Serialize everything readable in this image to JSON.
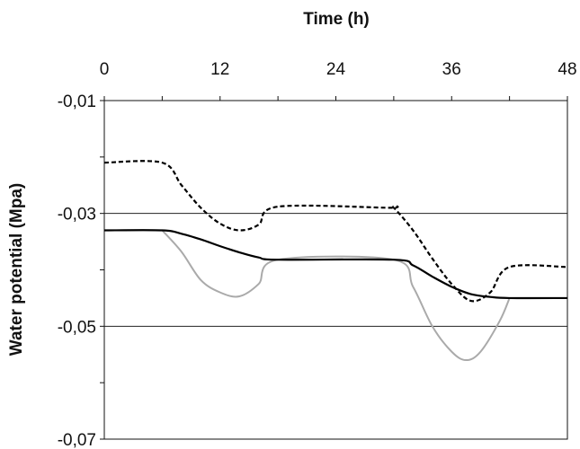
{
  "chart_data": {
    "type": "line",
    "title": "",
    "xlabel": "Time (h)",
    "ylabel": "Water potential (Mpa)",
    "x_axis_position": "top",
    "xlim": [
      0,
      48
    ],
    "ylim": [
      -0.07,
      -0.01
    ],
    "x_ticks": [
      0,
      12,
      24,
      36,
      48
    ],
    "x_tick_labels": [
      "0",
      "12",
      "24",
      "36",
      "48"
    ],
    "y_ticks": [
      -0.01,
      -0.03,
      -0.05,
      -0.07
    ],
    "y_tick_labels": [
      "-0,01",
      "-0,03",
      "-0,05",
      "-0,07"
    ],
    "grid": "horizontal at -0,03 and -0,05",
    "legend": "none",
    "series": [
      {
        "style": "dashed",
        "color": "#000000",
        "points": [
          [
            0,
            -0.021
          ],
          [
            6,
            -0.021
          ],
          [
            8,
            -0.025
          ],
          [
            10,
            -0.029
          ],
          [
            12,
            -0.0318
          ],
          [
            14,
            -0.033
          ],
          [
            16,
            -0.032
          ],
          [
            18,
            -0.0288
          ],
          [
            29.5,
            -0.029
          ],
          [
            30,
            -0.029
          ],
          [
            32,
            -0.033
          ],
          [
            34,
            -0.038
          ],
          [
            36,
            -0.0425
          ],
          [
            38,
            -0.0455
          ],
          [
            40,
            -0.044
          ],
          [
            42,
            -0.0395
          ],
          [
            48,
            -0.0395
          ]
        ]
      },
      {
        "style": "solid",
        "color": "#000000",
        "points": [
          [
            0,
            -0.033
          ],
          [
            6,
            -0.033
          ],
          [
            8,
            -0.0336
          ],
          [
            10,
            -0.0346
          ],
          [
            12,
            -0.0358
          ],
          [
            14,
            -0.0369
          ],
          [
            16,
            -0.0378
          ],
          [
            18,
            -0.0382
          ],
          [
            30,
            -0.0382
          ],
          [
            32,
            -0.0392
          ],
          [
            34,
            -0.0412
          ],
          [
            36,
            -0.043
          ],
          [
            38,
            -0.0443
          ],
          [
            40,
            -0.0448
          ],
          [
            42,
            -0.045
          ],
          [
            48,
            -0.045
          ]
        ]
      },
      {
        "style": "solid",
        "color": "#aaaaaa",
        "points": [
          [
            6,
            -0.033
          ],
          [
            8,
            -0.0368
          ],
          [
            10,
            -0.0418
          ],
          [
            12,
            -0.044
          ],
          [
            14,
            -0.0447
          ],
          [
            16,
            -0.0425
          ],
          [
            18,
            -0.0382
          ],
          [
            30,
            -0.0382
          ],
          [
            32,
            -0.043
          ],
          [
            34,
            -0.05
          ],
          [
            36,
            -0.0545
          ],
          [
            37.5,
            -0.056
          ],
          [
            39,
            -0.0545
          ],
          [
            41,
            -0.049
          ],
          [
            42,
            -0.045
          ]
        ]
      }
    ]
  }
}
